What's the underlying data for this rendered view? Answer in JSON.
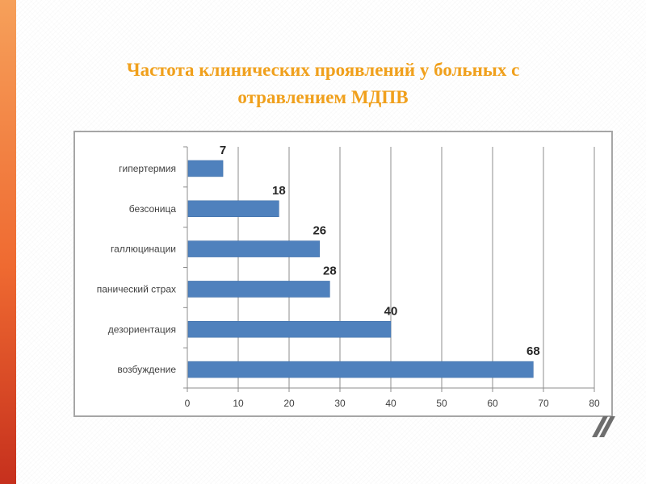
{
  "title": "Частота клинических проявлений у больных с отравлением МДПВ",
  "chart_data": {
    "type": "bar",
    "orientation": "horizontal",
    "categories": [
      "гипертермия",
      "безсоница",
      "галлюцинации",
      "панический страх",
      "дезориентация",
      "возбуждение"
    ],
    "values": [
      7,
      18,
      26,
      28,
      40,
      68
    ],
    "xlim": [
      0,
      80
    ],
    "xticks": [
      0,
      10,
      20,
      30,
      40,
      50,
      60,
      70,
      80
    ],
    "grid": "vertical",
    "data_labels": true,
    "legend": "none",
    "title": "",
    "xlabel": "",
    "ylabel": "",
    "bar_color": "#4f81bd"
  },
  "colors": {
    "title": "#f0a01c",
    "accent": "#ef6a31",
    "bar": "#4f81bd"
  }
}
